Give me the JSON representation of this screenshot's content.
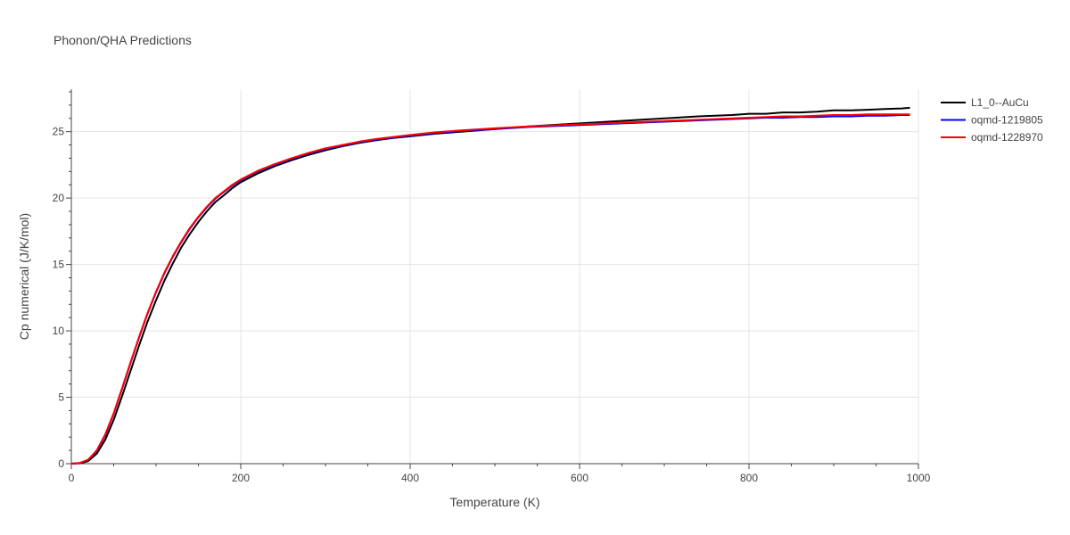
{
  "chart_data": {
    "type": "line",
    "title": "Phonon/QHA Predictions",
    "xlabel": "Temperature (K)",
    "ylabel": "Cp numerical (J/K/mol)",
    "xlim": [
      0,
      1000
    ],
    "ylim": [
      0,
      28.2
    ],
    "xticks": [
      0,
      200,
      400,
      600,
      800,
      1000
    ],
    "yticks": [
      0,
      5,
      10,
      15,
      20,
      25
    ],
    "grid": true,
    "legend_position": "top-right outside",
    "x": [
      0,
      10,
      20,
      30,
      40,
      50,
      60,
      70,
      80,
      90,
      100,
      110,
      120,
      130,
      140,
      150,
      160,
      170,
      180,
      190,
      200,
      220,
      240,
      260,
      280,
      300,
      320,
      340,
      360,
      380,
      400,
      430,
      460,
      500,
      540,
      580,
      620,
      660,
      700,
      740,
      780,
      800,
      820,
      840,
      860,
      880,
      900,
      920,
      940,
      960,
      980,
      990
    ],
    "series": [
      {
        "name": "L1_0--AuCu",
        "color": "#000000",
        "values": [
          0,
          0.03,
          0.2,
          0.75,
          1.8,
          3.3,
          5.1,
          7.0,
          8.9,
          10.7,
          12.3,
          13.8,
          15.1,
          16.3,
          17.3,
          18.2,
          19.0,
          19.7,
          20.2,
          20.75,
          21.2,
          21.85,
          22.4,
          22.85,
          23.25,
          23.6,
          23.9,
          24.15,
          24.35,
          24.52,
          24.65,
          24.85,
          25.0,
          25.2,
          25.4,
          25.55,
          25.7,
          25.85,
          26.0,
          26.15,
          26.25,
          26.35,
          26.35,
          26.45,
          26.45,
          26.5,
          26.6,
          26.6,
          26.65,
          26.7,
          26.75,
          26.8
        ]
      },
      {
        "name": "oqmd-1219805",
        "color": "#0000ff",
        "values": [
          0,
          0.05,
          0.3,
          0.95,
          2.15,
          3.75,
          5.65,
          7.6,
          9.5,
          11.3,
          12.9,
          14.35,
          15.6,
          16.7,
          17.7,
          18.55,
          19.3,
          19.95,
          20.45,
          20.95,
          21.35,
          22.0,
          22.5,
          22.95,
          23.35,
          23.7,
          23.95,
          24.2,
          24.4,
          24.55,
          24.7,
          24.9,
          25.05,
          25.2,
          25.35,
          25.45,
          25.55,
          25.65,
          25.75,
          25.85,
          25.95,
          26.0,
          26.05,
          26.05,
          26.1,
          26.1,
          26.15,
          26.15,
          26.2,
          26.2,
          26.25,
          26.25
        ]
      },
      {
        "name": "oqmd-1228970",
        "color": "#ff0000",
        "values": [
          0,
          0.05,
          0.3,
          1.0,
          2.2,
          3.8,
          5.7,
          7.65,
          9.55,
          11.35,
          12.95,
          14.4,
          15.65,
          16.75,
          17.75,
          18.6,
          19.35,
          20.0,
          20.5,
          21.0,
          21.4,
          22.05,
          22.55,
          23.0,
          23.4,
          23.75,
          24.0,
          24.25,
          24.45,
          24.6,
          24.75,
          24.95,
          25.1,
          25.25,
          25.4,
          25.5,
          25.6,
          25.7,
          25.8,
          25.9,
          26.0,
          26.05,
          26.1,
          26.15,
          26.15,
          26.2,
          26.25,
          26.25,
          26.3,
          26.3,
          26.3,
          26.3
        ]
      }
    ]
  }
}
